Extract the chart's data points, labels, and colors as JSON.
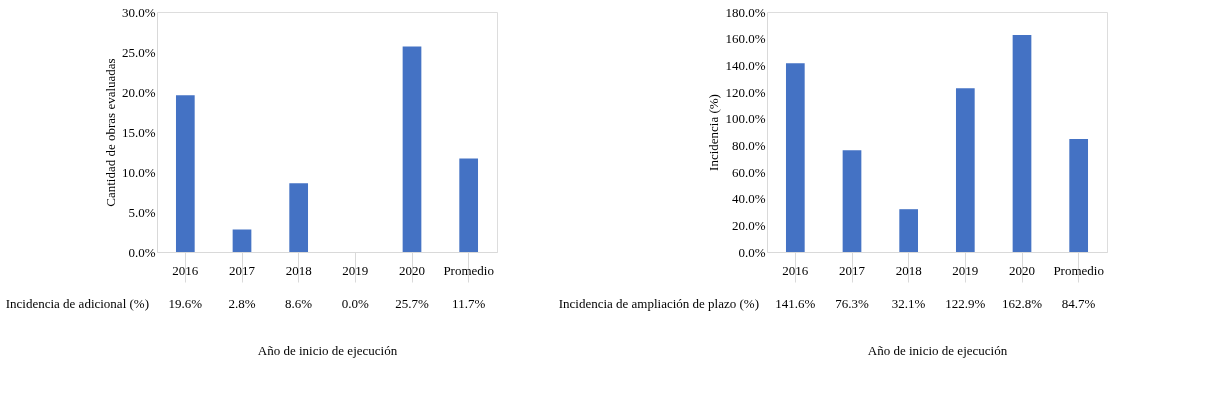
{
  "chart_data": [
    {
      "type": "bar",
      "ylabel": "Cantidad de obras evaluadas",
      "xlabel": "Año de inicio de ejecución",
      "categories": [
        "2016",
        "2017",
        "2018",
        "2019",
        "2020",
        "Promedio"
      ],
      "series": [
        {
          "name": "Incidencia de adicional (%)",
          "color": "#4472c4",
          "values": [
            19.6,
            2.8,
            8.6,
            0.0,
            25.7,
            11.7
          ],
          "value_labels": [
            "19.6%",
            "2.8%",
            "8.6%",
            "0.0%",
            "25.7%",
            "11.7%"
          ]
        }
      ],
      "ylim": [
        0,
        30
      ],
      "yticks": [
        {
          "value": 0,
          "label": "0.0%"
        },
        {
          "value": 5,
          "label": "5.0%"
        },
        {
          "value": 10,
          "label": "10.0%"
        },
        {
          "value": 15,
          "label": "15.0%"
        },
        {
          "value": 20,
          "label": "20.0%"
        },
        {
          "value": 25,
          "label": "25.0%"
        },
        {
          "value": 30,
          "label": "30.0%"
        }
      ],
      "grid": false
    },
    {
      "type": "bar",
      "ylabel": "Incidencia (%)",
      "xlabel": "Año de inicio de ejecución",
      "categories": [
        "2016",
        "2017",
        "2018",
        "2019",
        "2020",
        "Promedio"
      ],
      "series": [
        {
          "name": "Incidencia de ampliación de plazo (%)",
          "color": "#4472c4",
          "values": [
            141.6,
            76.3,
            32.1,
            122.9,
            162.8,
            84.7
          ],
          "value_labels": [
            "141.6%",
            "76.3%",
            "32.1%",
            "122.9%",
            "162.8%",
            "84.7%"
          ]
        }
      ],
      "ylim": [
        0,
        180
      ],
      "yticks": [
        {
          "value": 0,
          "label": "0.0%"
        },
        {
          "value": 20,
          "label": "20.0%"
        },
        {
          "value": 40,
          "label": "40.0%"
        },
        {
          "value": 60,
          "label": "60.0%"
        },
        {
          "value": 80,
          "label": "80.0%"
        },
        {
          "value": 100,
          "label": "100.0%"
        },
        {
          "value": 120,
          "label": "120.0%"
        },
        {
          "value": 140,
          "label": "140.0%"
        },
        {
          "value": 160,
          "label": "160.0%"
        },
        {
          "value": 180,
          "label": "180.0%"
        }
      ],
      "grid": false
    }
  ]
}
